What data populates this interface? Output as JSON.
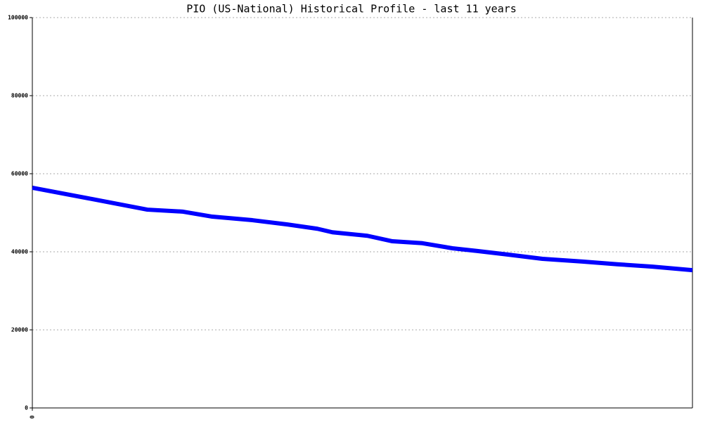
{
  "chart_data": {
    "type": "line",
    "title": "PIO (US-National) Historical Profile - last 11 years",
    "x": [
      0,
      12,
      23,
      30,
      36,
      44,
      51,
      57,
      60,
      67,
      72,
      78,
      84,
      89,
      95,
      102,
      110,
      117,
      124,
      132
    ],
    "series": [
      {
        "color": "#0000ff",
        "values": [
          56400,
          53500,
          50800,
          50300,
          49000,
          48100,
          47000,
          45900,
          45000,
          44100,
          42700,
          42200,
          40900,
          40200,
          39300,
          38200,
          37500,
          36800,
          36200,
          35300
        ]
      }
    ],
    "xlim": [
      0,
      132
    ],
    "xticks": [
      0
    ],
    "ylim": [
      0,
      100000
    ],
    "yticks": [
      0,
      20000,
      40000,
      60000,
      80000,
      100000
    ],
    "grid": true
  }
}
